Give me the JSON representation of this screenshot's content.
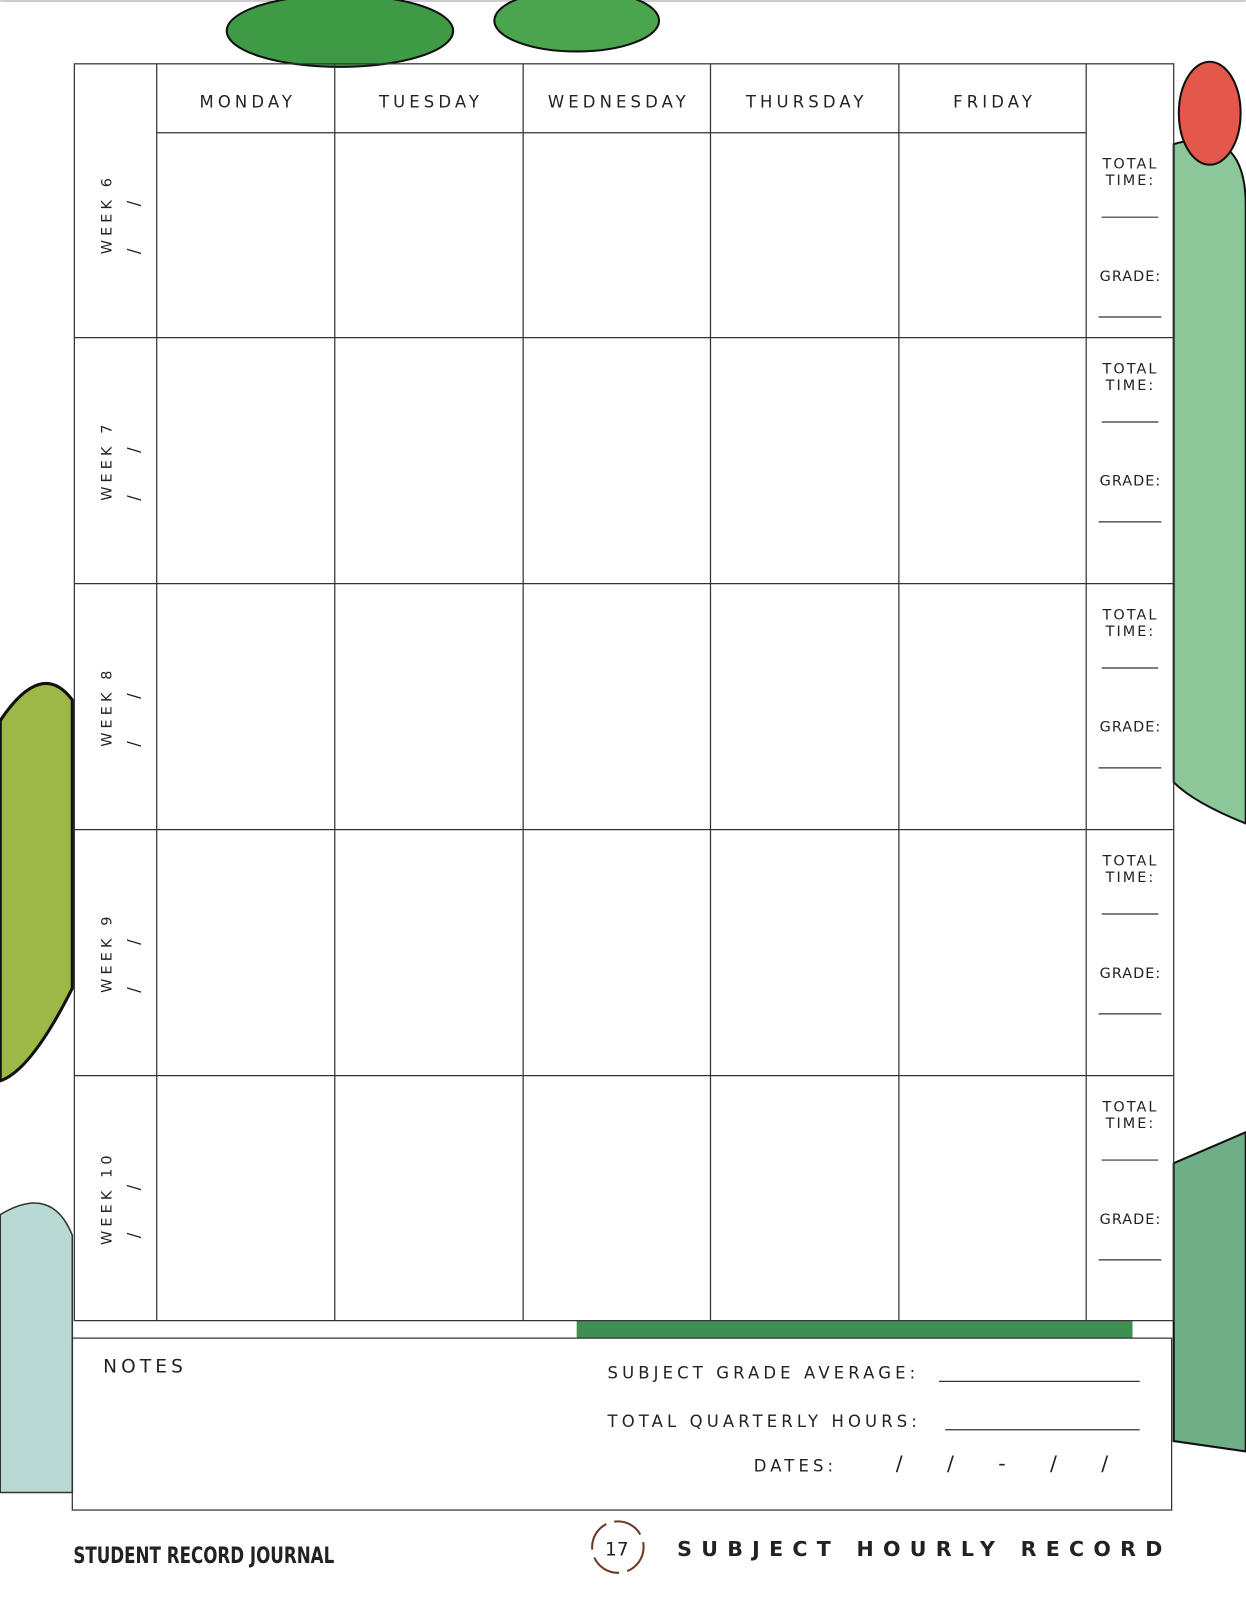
{
  "days": [
    "MONDAY",
    "TUESDAY",
    "WEDNESDAY",
    "THURSDAY",
    "FRIDAY"
  ],
  "weeks": [
    {
      "label": "WEEK 6",
      "date": "/ /",
      "total": [
        "TOTAL",
        "TIME:"
      ],
      "grade": "GRADE:"
    },
    {
      "label": "WEEK 7",
      "date": "/ /",
      "total": [
        "TOTAL",
        "TIME:"
      ],
      "grade": "GRADE:"
    },
    {
      "label": "WEEK 8",
      "date": "/ /",
      "total": [
        "TOTAL",
        "TIME:"
      ],
      "grade": "GRADE:"
    },
    {
      "label": "WEEK 9",
      "date": "/ /",
      "total": [
        "TOTAL",
        "TIME:"
      ],
      "grade": "GRADE:"
    },
    {
      "label": "WEEK 10",
      "date": "/ /",
      "total": [
        "TOTAL",
        "TIME:"
      ],
      "grade": "GRADE:"
    }
  ],
  "notes": {
    "title": "NOTES",
    "grade_average": "SUBJECT GRADE AVERAGE:",
    "quarterly_hours": "TOTAL QUARTERLY HOURS:",
    "dates_label": "DATES:",
    "dates_value": "/   /   -   /   /"
  },
  "footer": {
    "left": "STUDENT RECORD JOURNAL",
    "page": "17",
    "right": "SUBJECT HOURLY RECORD"
  }
}
